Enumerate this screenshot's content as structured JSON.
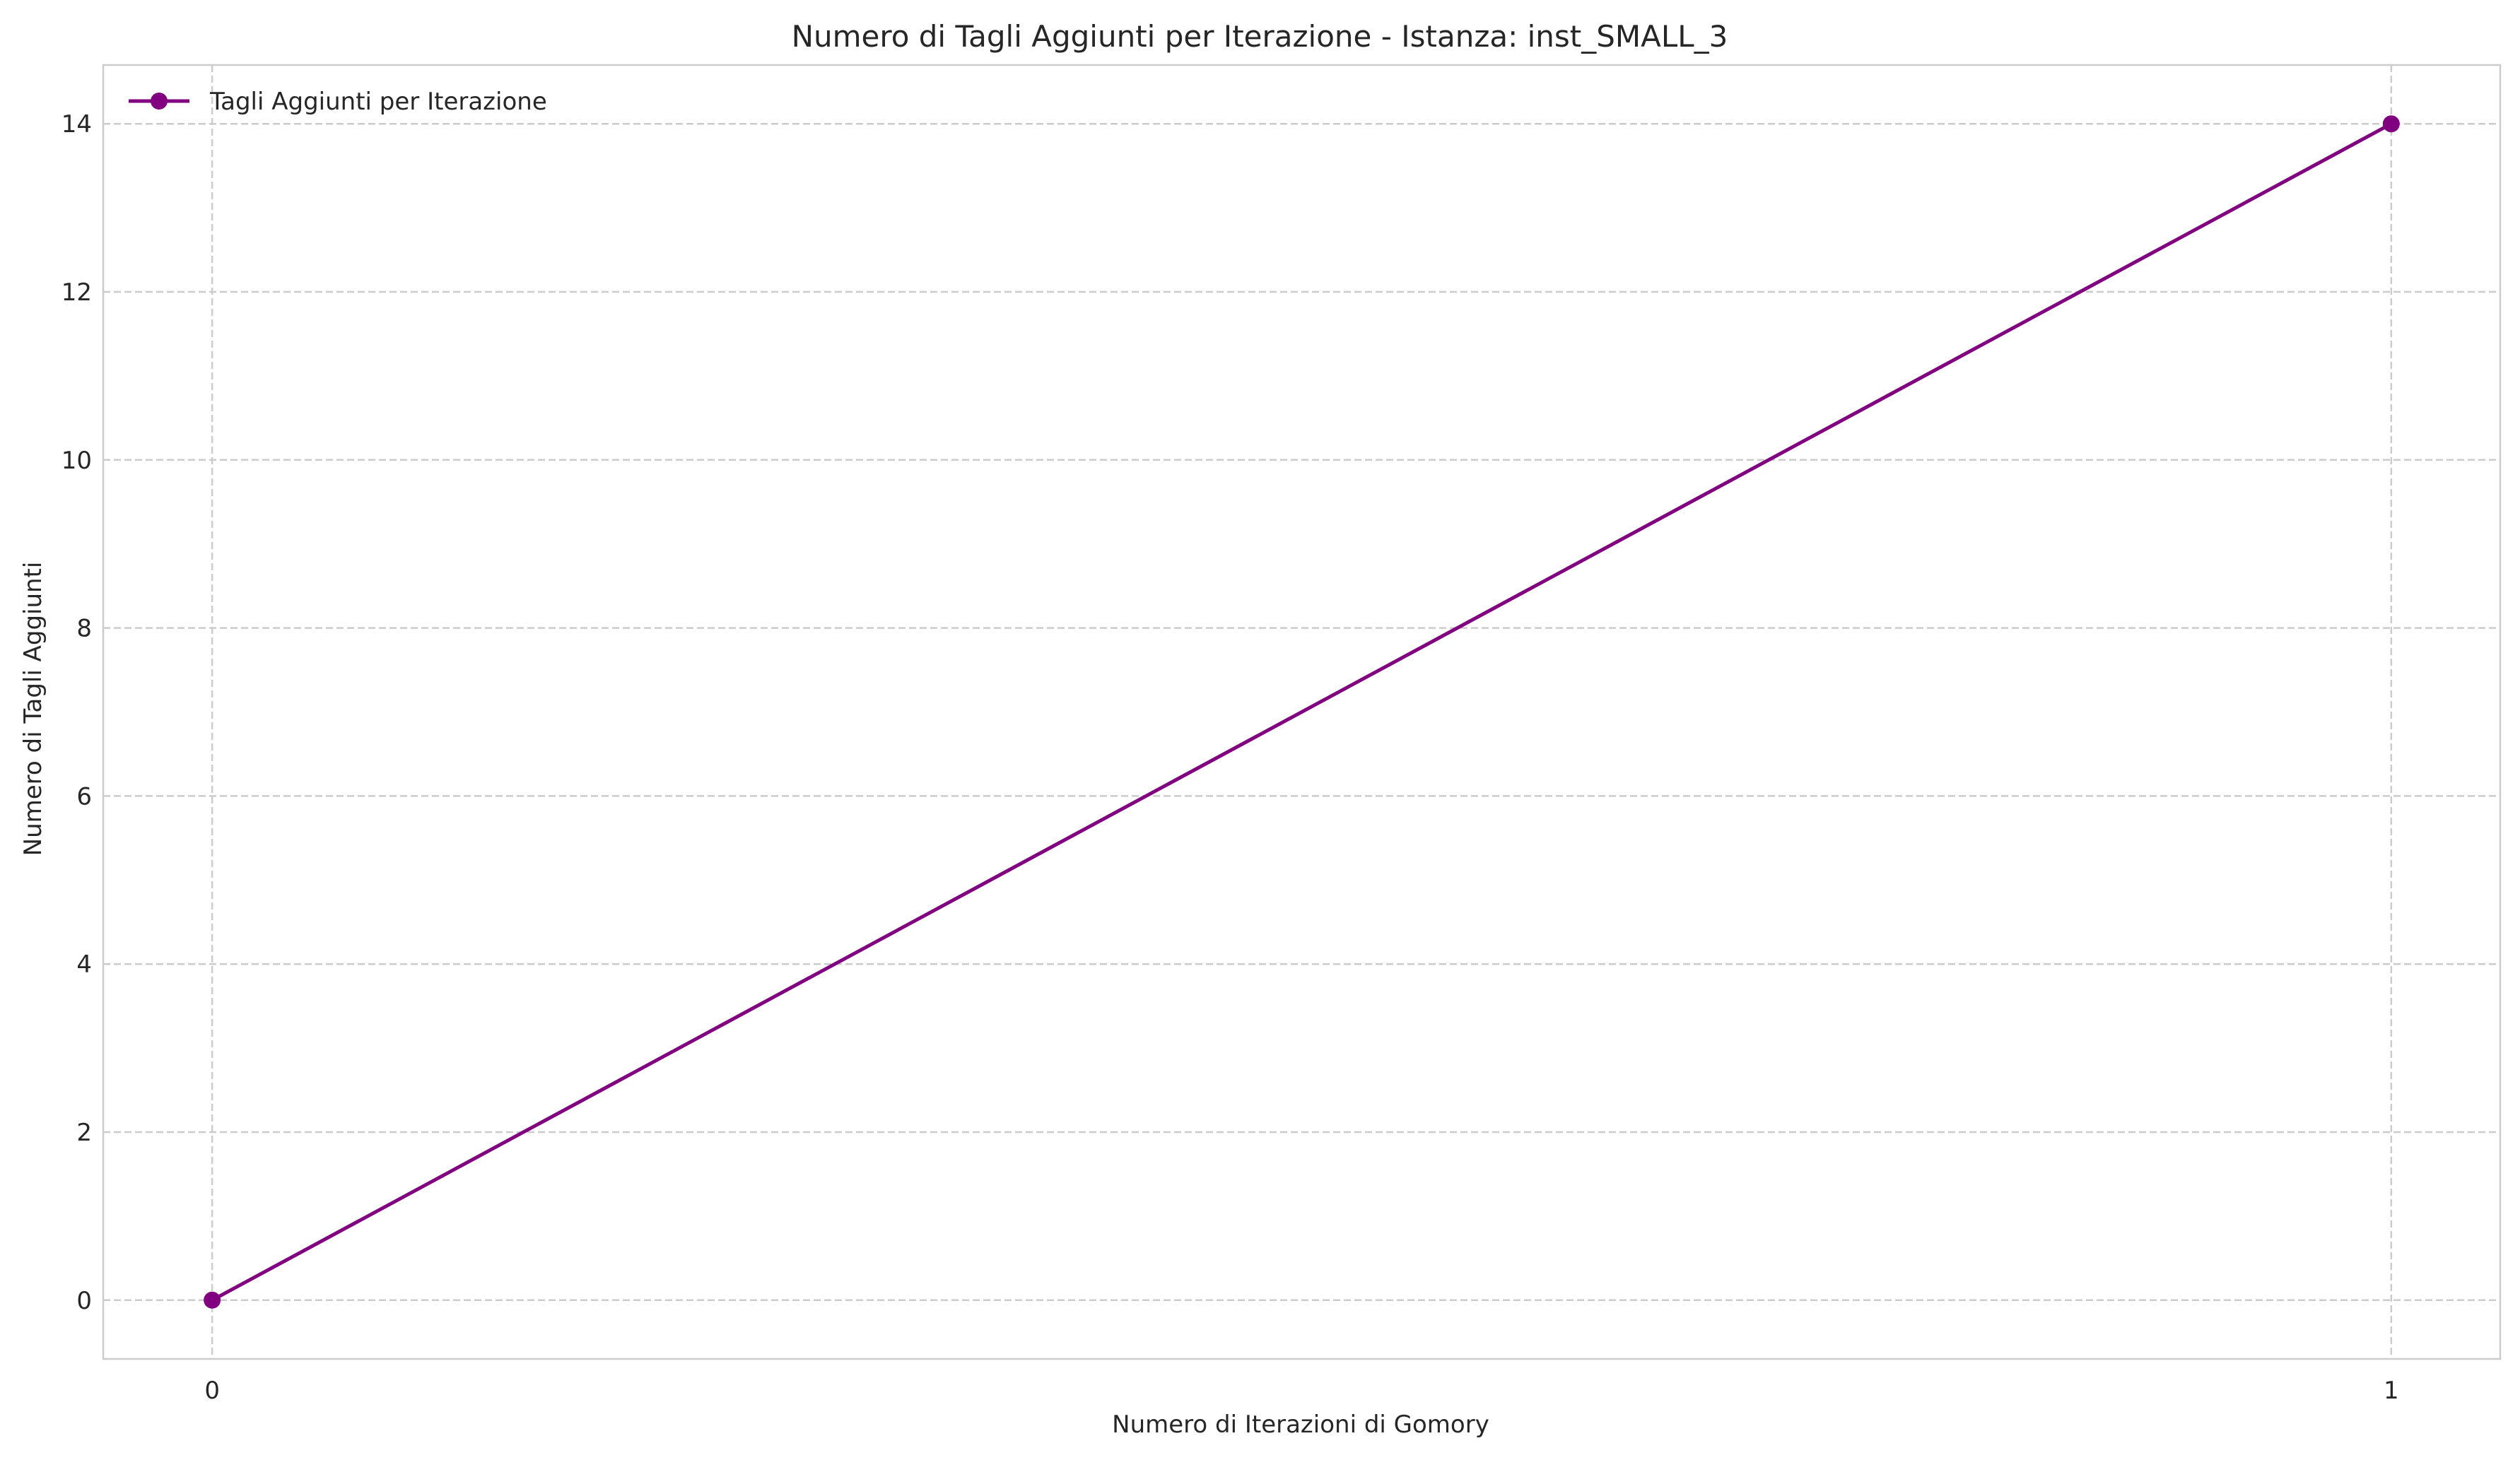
{
  "chart_data": {
    "type": "line",
    "title": "Numero di Tagli Aggiunti per Iterazione - Istanza: inst_SMALL_3",
    "xlabel": "Numero di Iterazioni di Gomory",
    "ylabel": "Numero di Tagli Aggiunti",
    "xlim": [
      -0.05,
      1.05
    ],
    "ylim": [
      -0.7,
      14.7
    ],
    "xticks": [
      0,
      1
    ],
    "yticks": [
      0,
      2,
      4,
      6,
      8,
      10,
      12,
      14
    ],
    "grid": true,
    "legend_position": "top-left",
    "series": [
      {
        "name": "Tagli Aggiunti per Iterazione",
        "color": "#800080",
        "marker": "circle",
        "x": [
          0,
          1
        ],
        "y": [
          0,
          14
        ]
      }
    ]
  }
}
